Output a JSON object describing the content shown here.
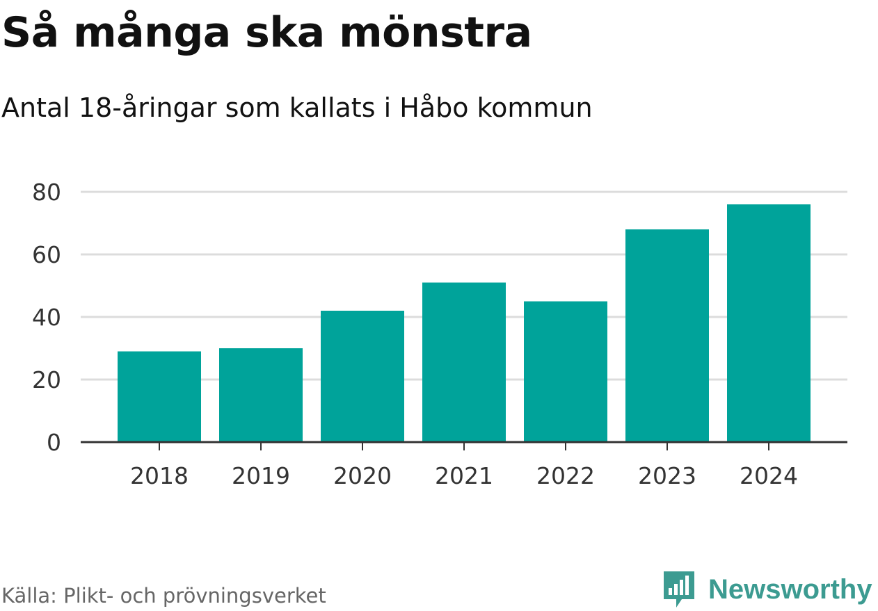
{
  "chart_data": {
    "type": "bar",
    "title": "Så många ska mönstra",
    "subtitle": "Antal 18-åringar som kallats i Håbo kommun",
    "categories": [
      "2018",
      "2019",
      "2020",
      "2021",
      "2022",
      "2023",
      "2024"
    ],
    "values": [
      29,
      30,
      42,
      51,
      45,
      68,
      76
    ],
    "yticks": [
      "0",
      "20",
      "40",
      "60",
      "80"
    ],
    "ylim": [
      0,
      80
    ],
    "xlabel": "",
    "ylabel": "",
    "grid": true,
    "bar_color": "#00a39a"
  },
  "source": "Källa: Plikt- och prövningsverket",
  "brand": {
    "name": "Newsworthy",
    "color": "#3c9b91",
    "icon": "newsworthy-logo-icon"
  }
}
